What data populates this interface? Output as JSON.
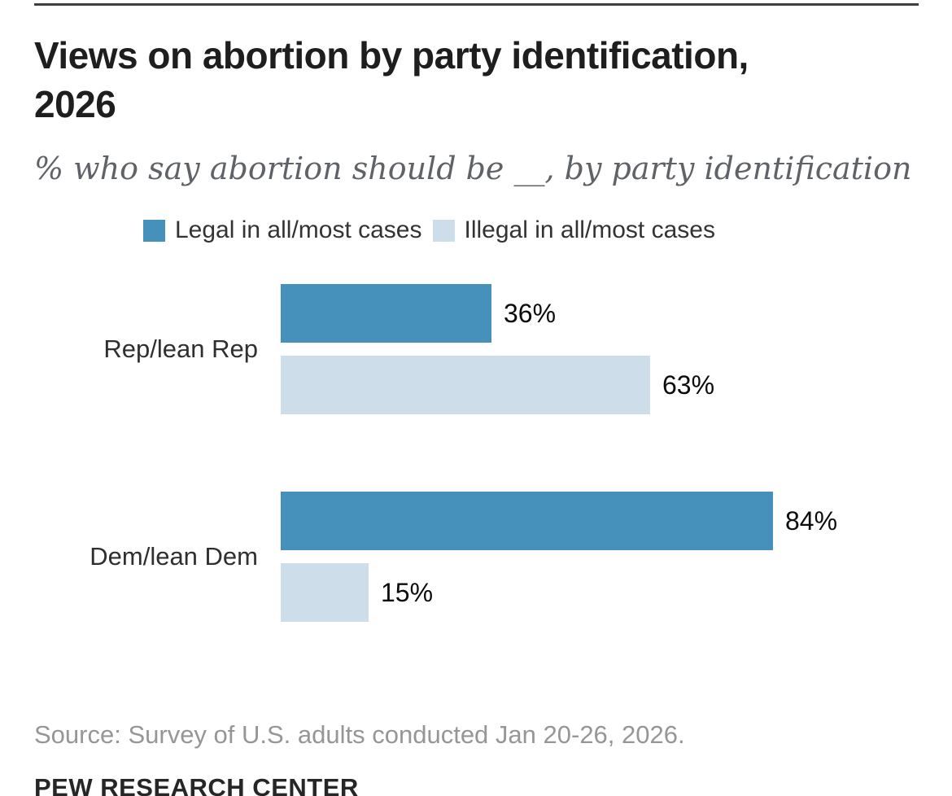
{
  "header": {
    "title_line1": "Views on abortion by party identification,",
    "title_line2": "2026",
    "subtitle": "% who say abortion should be __, by party identification"
  },
  "chart_data": {
    "type": "bar",
    "orientation": "horizontal",
    "categories": [
      "Rep/lean Rep",
      "Dem/lean Dem"
    ],
    "series": [
      {
        "name": "Legal in all/most cases",
        "color": "#4591BC",
        "values": [
          36,
          84
        ]
      },
      {
        "name": "Illegal in all/most cases",
        "color": "#CDDDEA",
        "values": [
          63,
          15
        ]
      }
    ],
    "value_suffix": "%",
    "xlim": [
      0,
      100
    ],
    "grid": false,
    "legend_position": "top"
  },
  "footer": {
    "source": "Source: Survey of U.S. adults conducted Jan 20-26, 2026.",
    "brand": "PEW RESEARCH CENTER"
  },
  "colors": {
    "accent_blue": "#4591BC",
    "light_blue": "#CDDDEA",
    "top_rule": "#3F3F3F",
    "title_text": "#1E1E1E",
    "subtitle_text": "#5F6368",
    "source_text": "#969696"
  }
}
